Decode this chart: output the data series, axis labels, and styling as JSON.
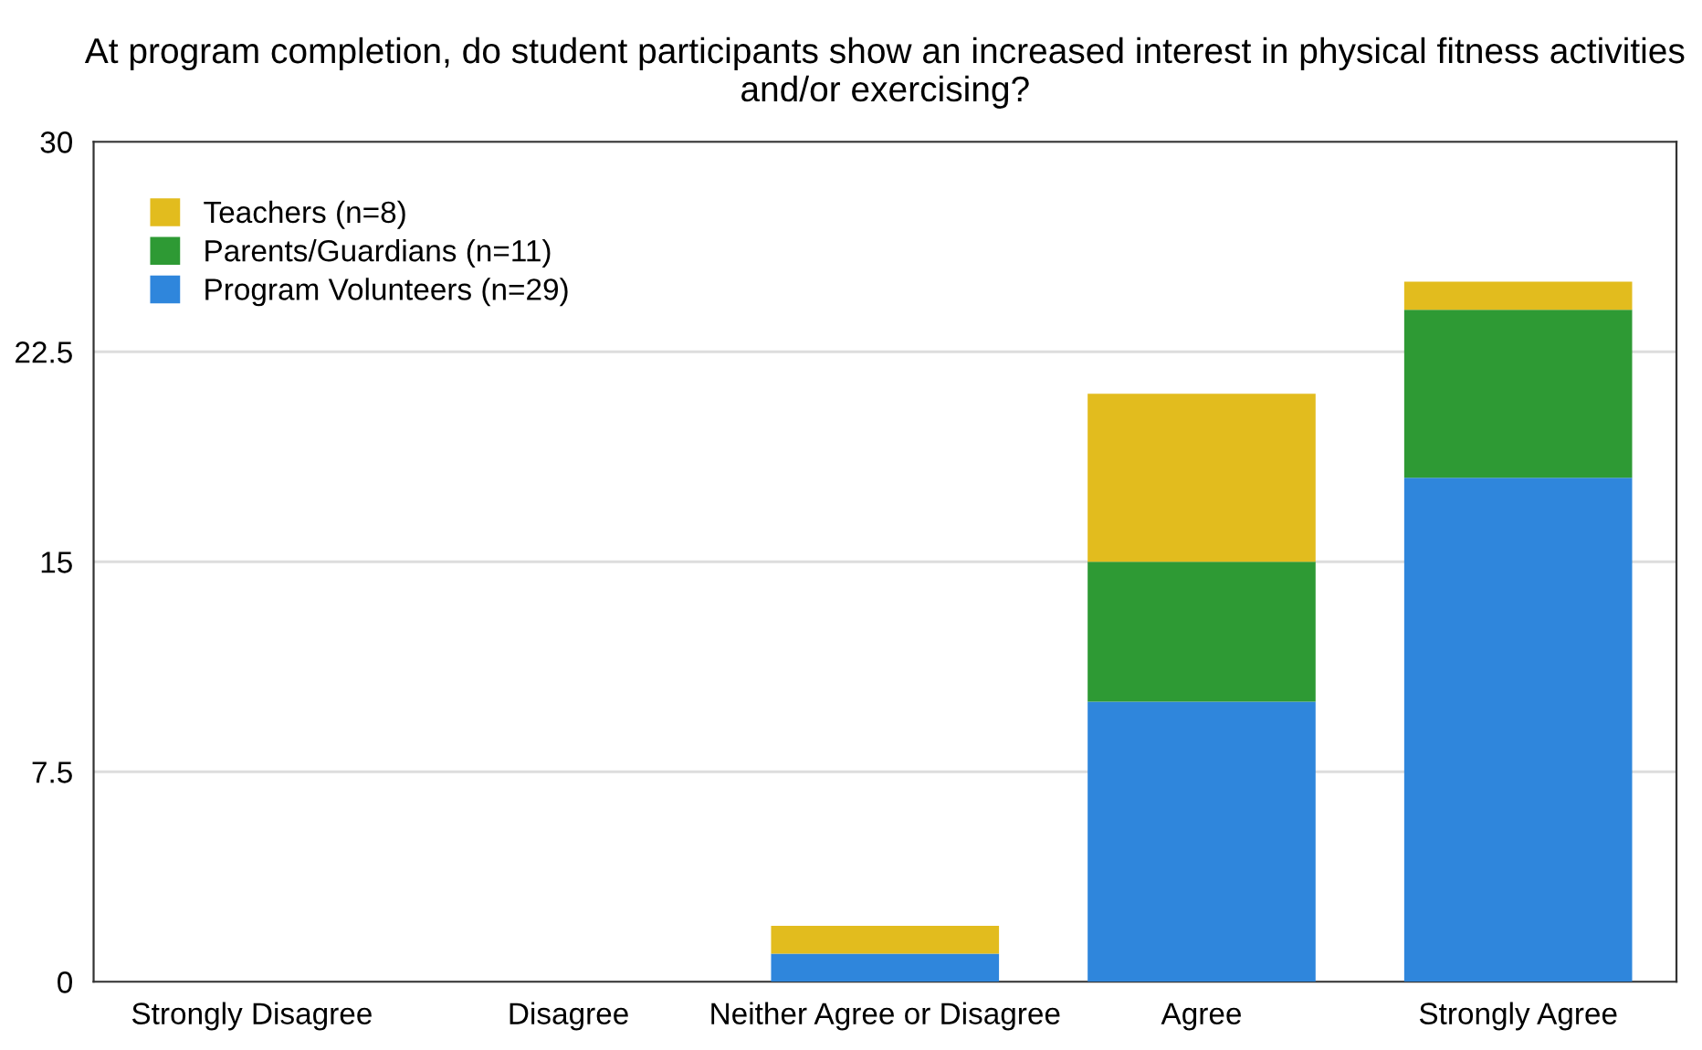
{
  "chart_data": {
    "type": "bar",
    "stacked": true,
    "title": "At program completion, do student participants show an increased interest in physical fitness activities and/or exercising?",
    "categories": [
      "Strongly Disagree",
      "Disagree",
      "Neither Agree or Disagree",
      "Agree",
      "Strongly Agree"
    ],
    "series": [
      {
        "name": "Program Volunteers (n=29)",
        "color": "#2f86dc",
        "values": [
          0,
          0,
          1,
          10,
          18
        ]
      },
      {
        "name": "Parents/Guardians (n=11)",
        "color": "#2e9a34",
        "values": [
          0,
          0,
          0,
          5,
          6
        ]
      },
      {
        "name": "Teachers (n=8)",
        "color": "#e2bc1e",
        "values": [
          0,
          0,
          1,
          6,
          1
        ]
      }
    ],
    "ylim": [
      0,
      30
    ],
    "yticks": [
      0,
      7.5,
      15,
      22.5,
      30
    ],
    "grid": "y",
    "legend": "top left"
  }
}
